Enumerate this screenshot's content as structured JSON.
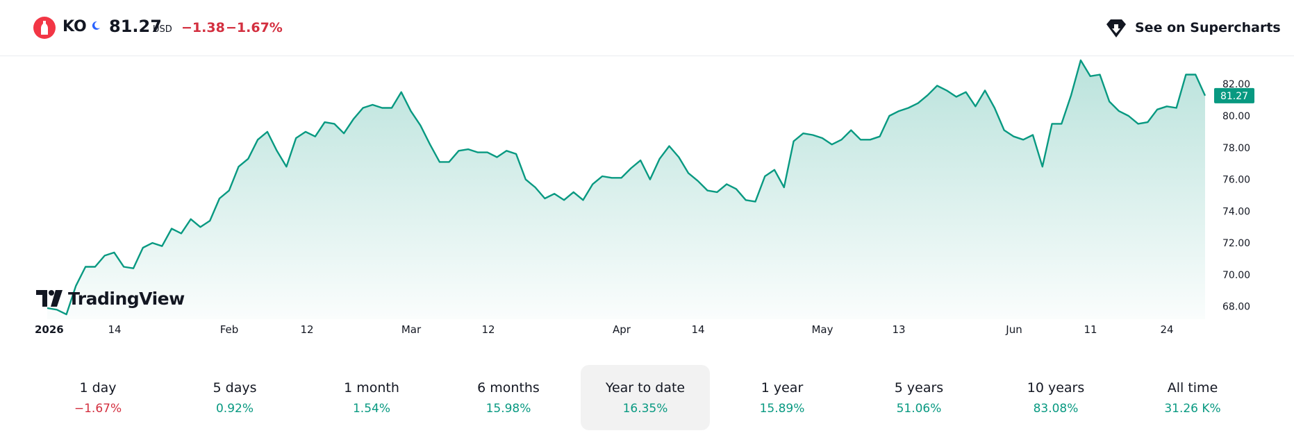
{
  "header": {
    "symbol": "KO",
    "price": "81.27",
    "currency": "USD",
    "change": "−1.38",
    "change_percent": "−1.67%",
    "supercharts_label": "See on Supercharts",
    "logo_icon": "coca-cola-bottle-icon",
    "session_icon": "moon-icon"
  },
  "colors": {
    "line": "#089981",
    "negative": "#d32f3f",
    "positive": "#089981",
    "logo_red": "#f23645",
    "moon_blue": "#2962ff"
  },
  "watermark": "TradingView",
  "chart_data": {
    "type": "area",
    "series": [
      {
        "values": [
          67.9,
          67.8,
          67.5,
          69.3,
          70.5,
          70.5,
          71.2,
          71.4,
          70.5,
          70.4,
          71.7,
          72.0,
          71.8,
          72.9,
          72.6,
          73.5,
          73.0,
          73.4,
          74.8,
          75.3,
          76.8,
          77.3,
          78.5,
          79.0,
          77.8,
          76.8,
          78.6,
          79.0,
          78.7,
          79.6,
          79.5,
          78.9,
          79.8,
          80.5,
          80.7,
          80.5,
          80.5,
          81.5,
          80.3,
          79.4,
          78.2,
          77.1,
          77.1,
          77.8,
          77.9,
          77.7,
          77.7,
          77.4,
          77.8,
          77.6,
          76.0,
          75.5,
          74.8,
          75.1,
          74.7,
          75.2,
          74.7,
          75.7,
          76.2,
          76.1,
          76.1,
          76.7,
          77.2,
          76.0,
          77.3,
          78.1,
          77.4,
          76.4,
          75.9,
          75.3,
          75.2,
          75.7,
          75.4,
          74.7,
          74.6,
          76.2,
          76.6,
          75.5,
          78.4,
          78.9,
          78.8,
          78.6,
          78.2,
          78.5,
          79.1,
          78.5,
          78.5,
          78.7,
          80.0,
          80.3,
          80.5,
          80.8,
          81.3,
          81.9,
          81.6,
          81.2,
          81.5,
          80.6,
          81.6,
          80.5,
          79.1,
          78.7,
          78.5,
          78.8,
          76.8,
          79.5,
          79.5,
          81.3,
          83.5,
          82.5,
          82.6,
          80.9,
          80.3,
          80.0,
          79.5,
          79.6,
          80.4,
          80.6,
          80.5,
          82.6,
          82.6,
          81.27
        ]
      }
    ],
    "x_ticks": [
      "2026",
      "14",
      "Feb",
      "12",
      "Mar",
      "12",
      "Apr",
      "14",
      "May",
      "13",
      "Jun",
      "11",
      "24"
    ],
    "y_ticks": [
      "68.00",
      "70.00",
      "72.00",
      "74.00",
      "76.00",
      "78.00",
      "80.00",
      "82.00"
    ],
    "ylim": [
      67.2,
      83.8
    ],
    "last_value_label": "81.27",
    "grid": false
  },
  "periods": [
    {
      "label": "1 day",
      "value": "−1.67%",
      "sign": "neg"
    },
    {
      "label": "5 days",
      "value": "0.92%",
      "sign": "pos"
    },
    {
      "label": "1 month",
      "value": "1.54%",
      "sign": "pos"
    },
    {
      "label": "6 months",
      "value": "15.98%",
      "sign": "pos"
    },
    {
      "label": "Year to date",
      "value": "16.35%",
      "sign": "pos",
      "active": true
    },
    {
      "label": "1 year",
      "value": "15.89%",
      "sign": "pos"
    },
    {
      "label": "5 years",
      "value": "51.06%",
      "sign": "pos"
    },
    {
      "label": "10 years",
      "value": "83.08%",
      "sign": "pos"
    },
    {
      "label": "All time",
      "value": "31.26 K%",
      "sign": "pos"
    }
  ]
}
